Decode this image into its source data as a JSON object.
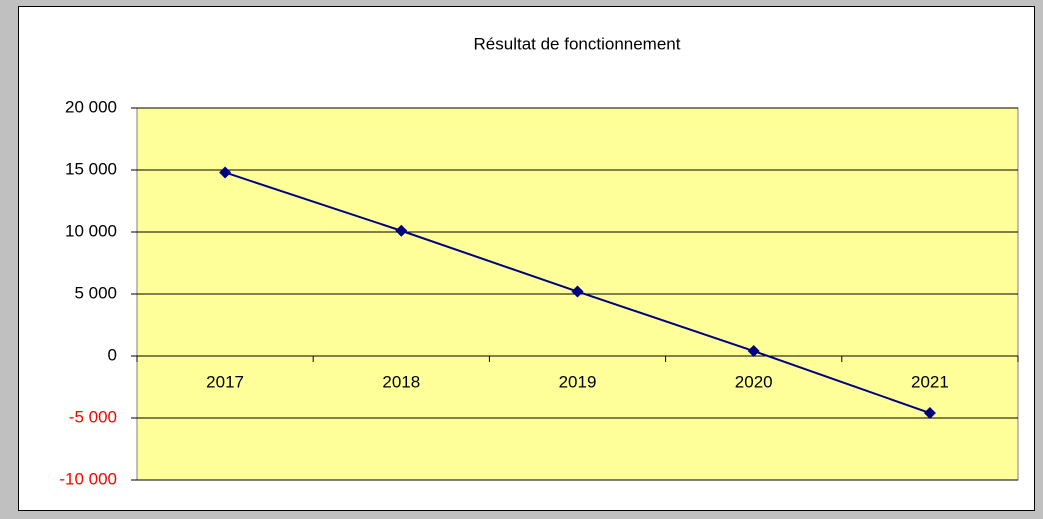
{
  "chart_data": {
    "type": "line",
    "title": "Résultat de fonctionnement",
    "categories": [
      "2017",
      "2018",
      "2019",
      "2020",
      "2021"
    ],
    "series": [
      {
        "name": "Résultat de fonctionnement",
        "color": "#000080",
        "values": [
          14800,
          10100,
          5200,
          400,
          -4600
        ]
      }
    ],
    "ylim": [
      -10000,
      20000
    ],
    "yticks": [
      {
        "value": -10000,
        "label": "-10 000"
      },
      {
        "value": -5000,
        "label": "-5 000"
      },
      0,
      {
        "value": 5000,
        "label": "5 000"
      },
      {
        "value": 10000,
        "label": "10 000"
      },
      {
        "value": 15000,
        "label": "15 000"
      },
      {
        "value": 20000,
        "label": "20 000"
      }
    ],
    "grid": true,
    "plot_background": "#ffff99",
    "negative_tick_color": "#ff0000"
  }
}
